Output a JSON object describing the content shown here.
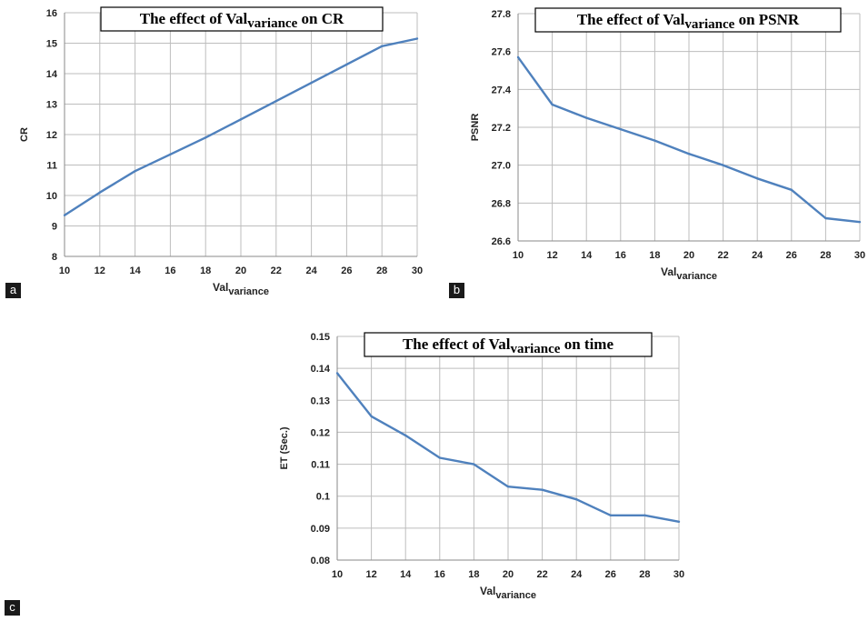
{
  "chart_data": [
    {
      "id": "a",
      "type": "line",
      "panel_label": "a",
      "title": {
        "pre": "The effect of Val",
        "sub": "variance",
        "post": " on CR"
      },
      "xlabel": {
        "main": "Val",
        "sub": "variance"
      },
      "ylabel": "CR",
      "x": [
        10,
        12,
        14,
        16,
        18,
        20,
        22,
        24,
        26,
        28,
        30
      ],
      "xticks": [
        "10",
        "12",
        "14",
        "16",
        "18",
        "20",
        "22",
        "24",
        "26",
        "28",
        "30"
      ],
      "yticks": [
        "8",
        "9",
        "10",
        "11",
        "12",
        "13",
        "14",
        "15",
        "16"
      ],
      "xlim": [
        10,
        30
      ],
      "ylim": [
        8,
        16
      ],
      "series": [
        {
          "values": [
            9.35,
            10.1,
            10.8,
            11.35,
            11.9,
            12.5,
            13.1,
            13.7,
            14.3,
            14.9,
            15.15
          ]
        }
      ],
      "color": "#4f81bd",
      "grid": true
    },
    {
      "id": "b",
      "type": "line",
      "panel_label": "b",
      "title": {
        "pre": "The effect of Val",
        "sub": "variance",
        "post": " on PSNR"
      },
      "xlabel": {
        "main": "Val",
        "sub": "variance"
      },
      "ylabel": "PSNR",
      "x": [
        10,
        12,
        14,
        16,
        18,
        20,
        22,
        24,
        26,
        28,
        30
      ],
      "xticks": [
        "10",
        "12",
        "14",
        "16",
        "18",
        "20",
        "22",
        "24",
        "26",
        "28",
        "30"
      ],
      "yticks": [
        "26.6",
        "26.8",
        "27.0",
        "27.2",
        "27.4",
        "27.6",
        "27.8"
      ],
      "xlim": [
        10,
        30
      ],
      "ylim": [
        26.6,
        27.8
      ],
      "series": [
        {
          "values": [
            27.57,
            27.32,
            27.25,
            27.19,
            27.13,
            27.06,
            27.0,
            26.93,
            26.87,
            26.72,
            26.7
          ]
        }
      ],
      "color": "#4f81bd",
      "grid": true
    },
    {
      "id": "c",
      "type": "line",
      "panel_label": "c",
      "title": {
        "pre": "The effect of Val",
        "sub": "variance",
        "post": " on time"
      },
      "xlabel": {
        "main": "Val",
        "sub": "variance"
      },
      "ylabel": "ET (Sec.)",
      "x": [
        10,
        12,
        14,
        16,
        18,
        20,
        22,
        24,
        26,
        28,
        30
      ],
      "xticks": [
        "10",
        "12",
        "14",
        "16",
        "18",
        "20",
        "22",
        "24",
        "26",
        "28",
        "30"
      ],
      "yticks": [
        "0.08",
        "0.09",
        "0.1",
        "0.11",
        "0.12",
        "0.13",
        "0.14",
        "0.15"
      ],
      "xlim": [
        10,
        30
      ],
      "ylim": [
        0.08,
        0.15
      ],
      "series": [
        {
          "values": [
            0.1385,
            0.125,
            0.119,
            0.112,
            0.11,
            0.103,
            0.102,
            0.099,
            0.094,
            0.094,
            0.092
          ]
        }
      ],
      "color": "#4f81bd",
      "grid": true
    }
  ]
}
